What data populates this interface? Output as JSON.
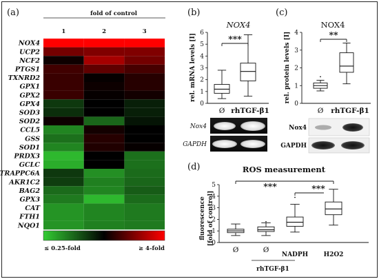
{
  "panels": {
    "a": {
      "label": "(a)",
      "header": "fold of control",
      "columns": [
        "1",
        "2",
        "3"
      ],
      "genes": [
        "NOX4",
        "UCP2",
        "NCF2",
        "PTGS1",
        "TXNRD2",
        "GPX1",
        "GPX2",
        "GPX4",
        "SOD3",
        "SOD2",
        "CCL5",
        "GSS",
        "SOD1",
        "PRDX3",
        "GCLC",
        "TRAPPC6A",
        "AKR1C2",
        "BAG2",
        "GPX3",
        "CAT",
        "FTH1",
        "NQO1"
      ],
      "log2_fold": [
        [
          2.0,
          2.0,
          2.0
        ],
        [
          0.9,
          1.0,
          1.0
        ],
        [
          0.1,
          1.3,
          0.9
        ],
        [
          0.5,
          0.75,
          0.55
        ],
        [
          0.45,
          0.05,
          0.3
        ],
        [
          0.45,
          0.1,
          0.3
        ],
        [
          0.45,
          0.05,
          0.15
        ],
        [
          -0.55,
          0.0,
          -0.3
        ],
        [
          -0.45,
          0.0,
          -0.3
        ],
        [
          0.1,
          -1.0,
          -0.2
        ],
        [
          -1.3,
          0.15,
          0.0
        ],
        [
          -1.1,
          0.3,
          0.0
        ],
        [
          -1.3,
          0.25,
          0.05
        ],
        [
          -1.8,
          0.0,
          -1.1
        ],
        [
          -1.7,
          0.0,
          -1.1
        ],
        [
          -0.55,
          -1.4,
          -1.05
        ],
        [
          -0.6,
          -1.25,
          -1.0
        ],
        [
          -1.05,
          -1.3,
          -0.9
        ],
        [
          -1.2,
          -1.8,
          -1.05
        ],
        [
          -1.45,
          -1.3,
          -1.2
        ],
        [
          -1.45,
          -1.3,
          -1.2
        ],
        [
          -1.45,
          -1.25,
          -1.2
        ]
      ],
      "scale": {
        "low_label": "≤ 0.25-fold",
        "high_label": "≥ 4-fold",
        "low_color": "#33cc33",
        "mid_color": "#000000",
        "high_color": "#ff0000"
      }
    },
    "b": {
      "label": "(b)",
      "title": "NOX4",
      "ylabel": "rel. mRNA levels [I]",
      "significance": "***",
      "gel_labels": [
        "Nox4",
        "GAPDH"
      ]
    },
    "c": {
      "label": "(c)",
      "title": "NOX4",
      "ylabel": "rel. protein levels [I]",
      "significance": "**",
      "gel_labels": [
        "Nox4",
        "GAPDH"
      ]
    },
    "d": {
      "label": "(d)",
      "title": "ROS measurement",
      "ylabel_line1": "fluorescence",
      "ylabel_line2": "[fold of control]",
      "significance": [
        "***",
        "***"
      ],
      "group_label": "rhTGF-β1"
    }
  },
  "chart_data": [
    {
      "type": "heatmap",
      "title": "fold of control",
      "columns": [
        "1",
        "2",
        "3"
      ],
      "rows": [
        "NOX4",
        "UCP2",
        "NCF2",
        "PTGS1",
        "TXNRD2",
        "GPX1",
        "GPX2",
        "GPX4",
        "SOD3",
        "SOD2",
        "CCL5",
        "GSS",
        "SOD1",
        "PRDX3",
        "GCLC",
        "TRAPPC6A",
        "AKR1C2",
        "BAG2",
        "GPX3",
        "CAT",
        "FTH1",
        "NQO1"
      ],
      "range": [
        "≤ 0.25-fold",
        "≥ 4-fold"
      ]
    },
    {
      "type": "box",
      "title": "NOX4",
      "ylabel": "rel. mRNA levels [I]",
      "categories": [
        "Ø",
        "rhTGF-β1"
      ],
      "ylim": [
        0,
        6
      ],
      "yticks": [
        0,
        1,
        2,
        3,
        4,
        5,
        6
      ],
      "boxes": [
        {
          "min": 0.4,
          "q1": 0.85,
          "median": 1.2,
          "q3": 1.6,
          "max": 2.8,
          "outliers": []
        },
        {
          "min": 0.6,
          "q1": 1.9,
          "median": 2.7,
          "q3": 3.4,
          "max": 5.8,
          "outliers": []
        }
      ]
    },
    {
      "type": "box",
      "title": "NOX4",
      "ylabel": "rel. protein levels [I]",
      "categories": [
        "Ø",
        "rhTGF-β1"
      ],
      "ylim": [
        0,
        4
      ],
      "yticks": [
        0,
        1,
        2,
        3,
        4
      ],
      "boxes": [
        {
          "min": 0.7,
          "q1": 0.85,
          "median": 1.0,
          "q3": 1.15,
          "max": 1.3,
          "outliers": [
            1.5
          ]
        },
        {
          "min": 1.1,
          "q1": 1.75,
          "median": 2.1,
          "q3": 2.85,
          "max": 3.4,
          "outliers": []
        }
      ]
    },
    {
      "type": "box",
      "title": "ROS measurement",
      "ylabel": "fluorescence [fold of control]",
      "categories": [
        "Ø",
        "Ø",
        "NADPH",
        "H2O2"
      ],
      "ylim": [
        0,
        5
      ],
      "yticks": [
        0,
        1,
        2,
        3,
        4,
        5
      ],
      "boxes": [
        {
          "min": 0.6,
          "q1": 0.85,
          "median": 1.0,
          "q3": 1.15,
          "max": 1.6,
          "outliers": []
        },
        {
          "min": 0.6,
          "q1": 0.95,
          "median": 1.1,
          "q3": 1.35,
          "max": 1.7,
          "outliers": [
            1.8
          ]
        },
        {
          "min": 0.9,
          "q1": 1.4,
          "median": 1.75,
          "q3": 2.2,
          "max": 3.3,
          "outliers": [
            3.9
          ]
        },
        {
          "min": 1.5,
          "q1": 2.4,
          "median": 2.9,
          "q3": 3.5,
          "max": 4.6,
          "outliers": []
        }
      ]
    }
  ]
}
